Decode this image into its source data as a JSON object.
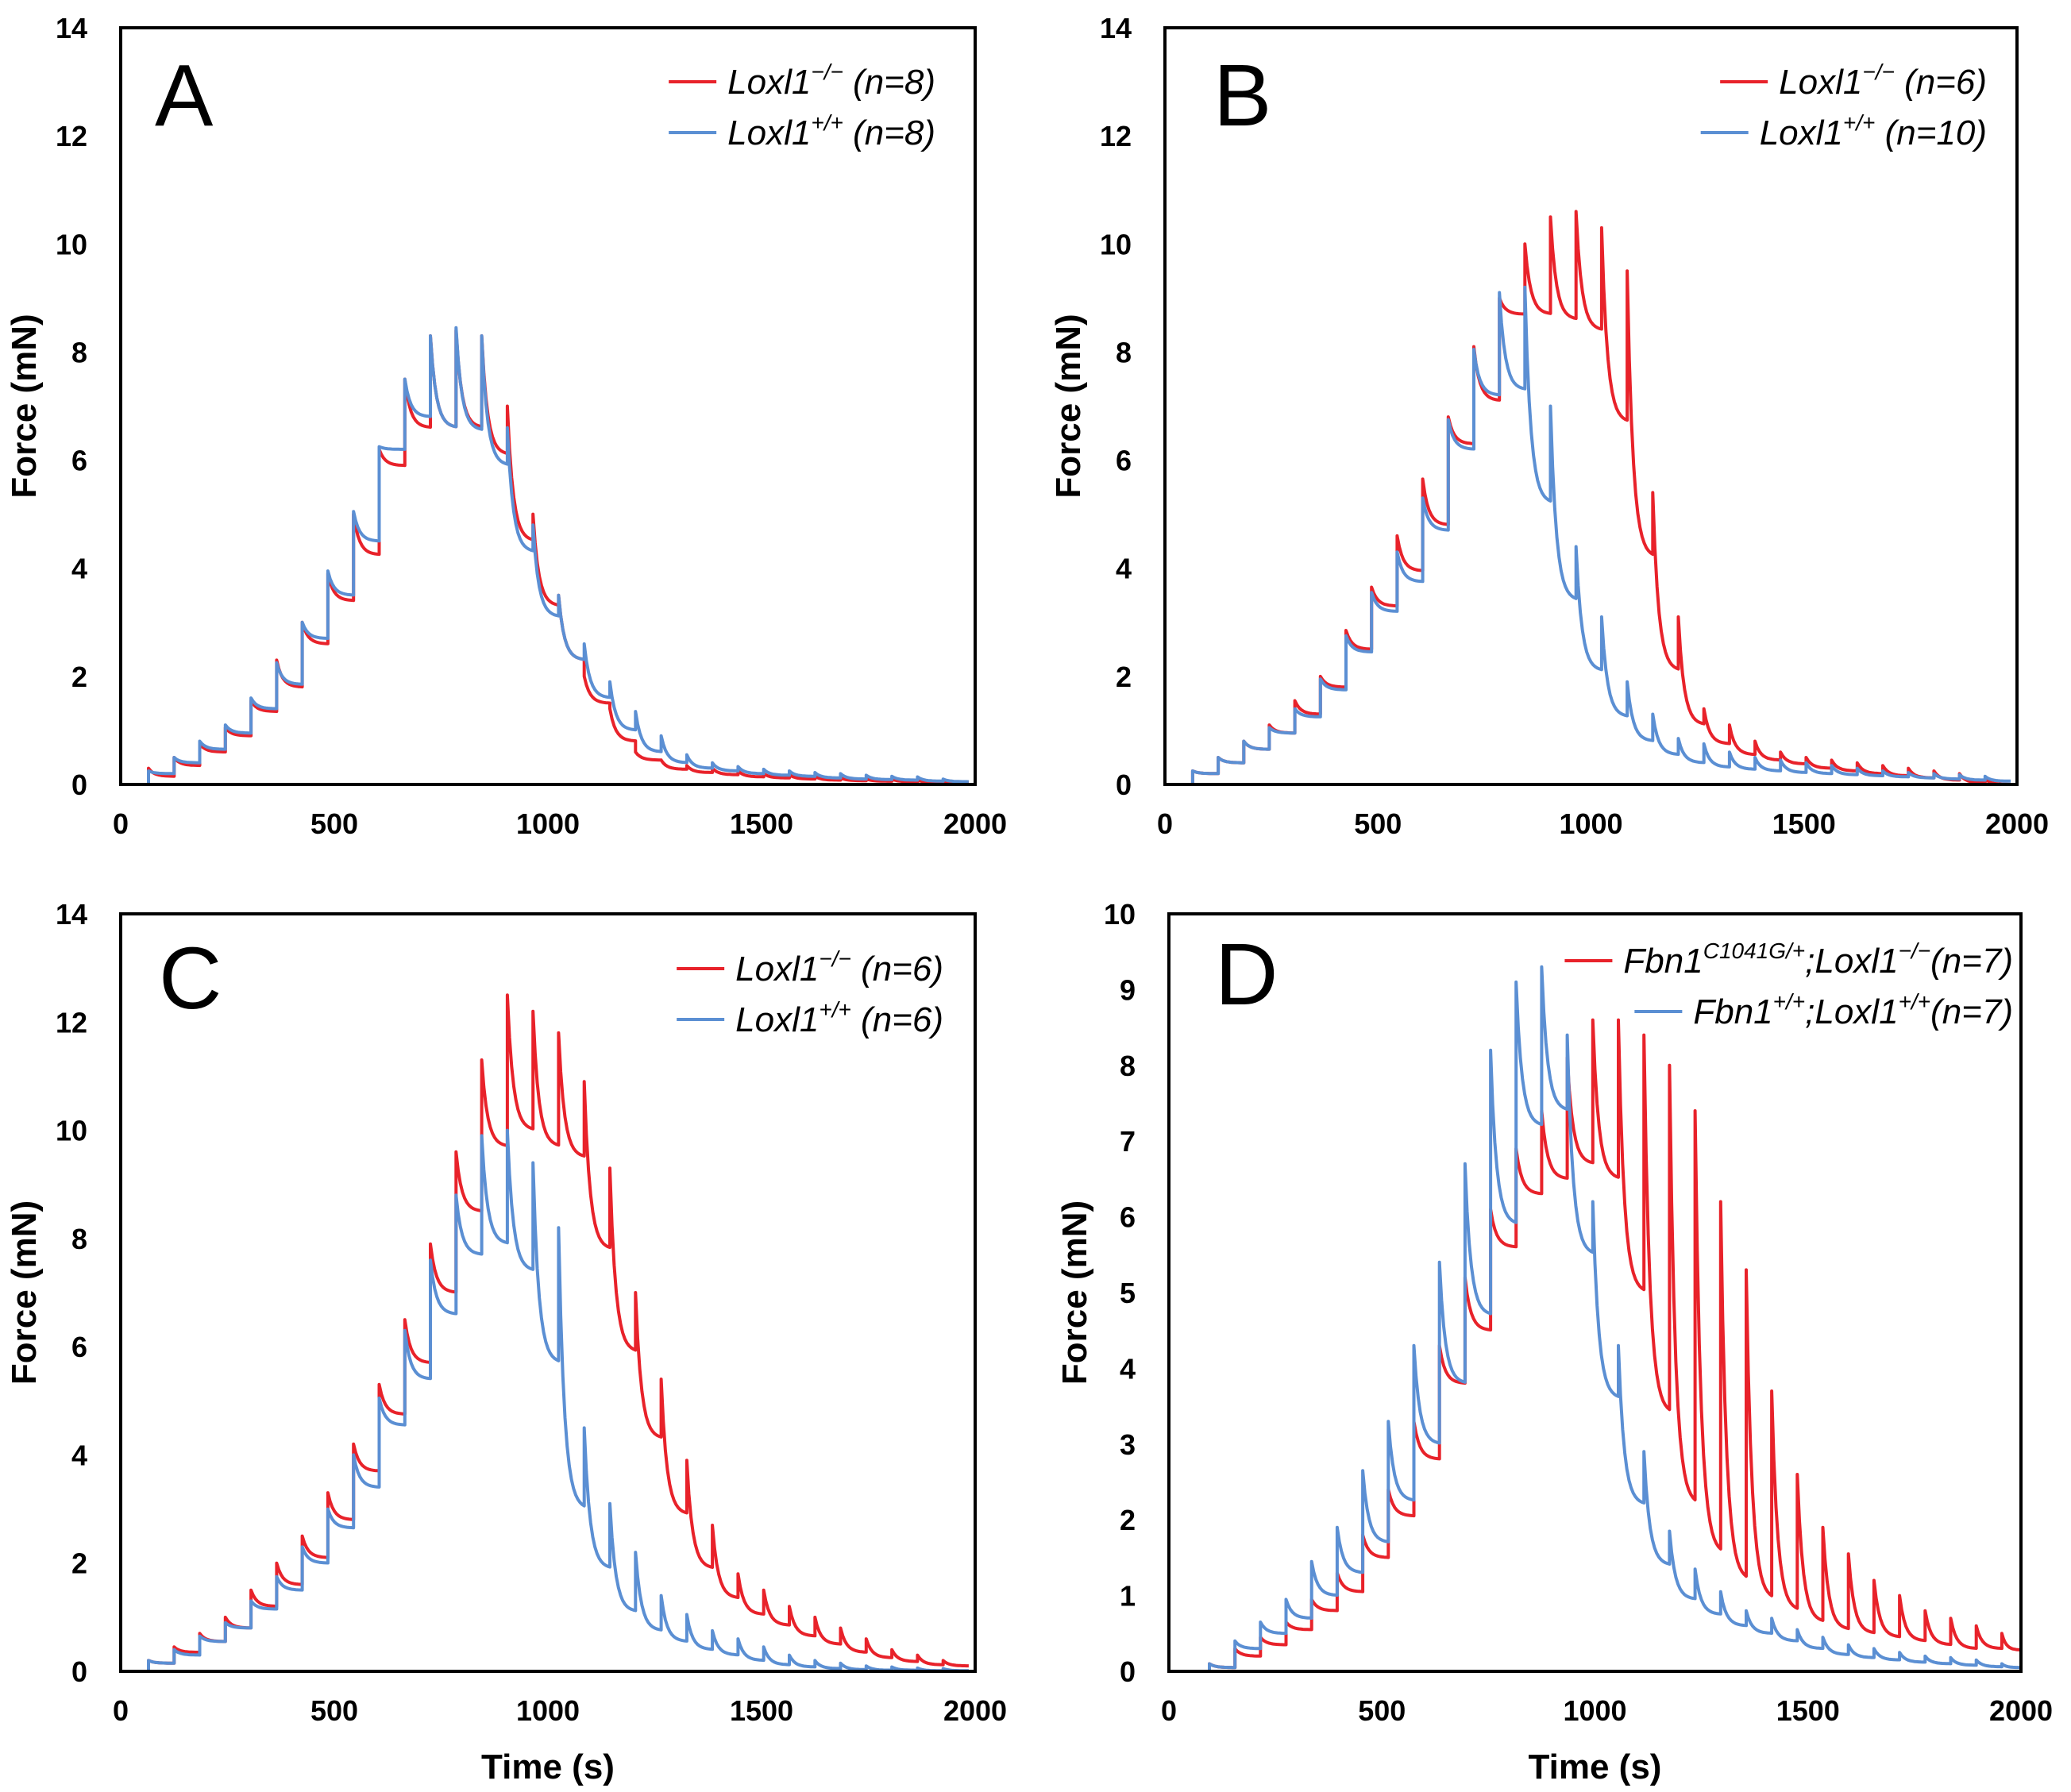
{
  "colors": {
    "red": "#e8222a",
    "blue": "#5b8fd3"
  },
  "chart_data": [
    {
      "id": "A",
      "type": "line",
      "panel_label": "A",
      "xlabel": "",
      "ylabel": "Force (mN)",
      "xlim": [
        0,
        2000
      ],
      "ylim": [
        0,
        14
      ],
      "xticks": [
        0,
        500,
        1000,
        1500,
        2000
      ],
      "yticks": [
        0,
        2,
        4,
        6,
        8,
        10,
        12,
        14
      ],
      "step_start": 65,
      "step_interval": 60,
      "step_offset": 0,
      "series": [
        {
          "name": "Loxl1−/− (n=8)",
          "gene": "Loxl1",
          "sup": "−/−",
          "n_text": " (n=8)",
          "color": "#e8222a",
          "levels": [
            0.15,
            0.35,
            0.6,
            0.9,
            1.35,
            1.8,
            2.6,
            3.4,
            4.25,
            5.9,
            6.6,
            6.6,
            6.6,
            6.1,
            4.5,
            3.3,
            2.3,
            1.5,
            0.8,
            0.45,
            0.28,
            0.22,
            0.18,
            0.14,
            0.12,
            0.1,
            0.08,
            0.07,
            0.06,
            0.05,
            0.04,
            0.03
          ],
          "peaks": [
            0.3,
            0.5,
            0.75,
            1.05,
            1.55,
            2.3,
            3.0,
            3.9,
            5.0,
            6.2,
            7.5,
            8.3,
            8.4,
            8.3,
            7.0,
            5.0,
            3.5,
            2.0,
            1.4,
            0.6,
            0.45,
            0.35,
            0.3,
            0.25,
            0.2,
            0.18,
            0.15,
            0.12,
            0.1,
            0.1,
            0.08,
            0.06
          ]
        },
        {
          "name": "Loxl1+/+ (n=8)",
          "gene": "Loxl1",
          "sup": "+/+",
          "n_text": " (n=8)",
          "color": "#5b8fd3",
          "levels": [
            0.2,
            0.4,
            0.65,
            0.95,
            1.4,
            1.85,
            2.7,
            3.5,
            4.5,
            6.2,
            6.8,
            6.6,
            6.55,
            5.9,
            4.3,
            3.1,
            2.3,
            1.6,
            1.0,
            0.6,
            0.4,
            0.3,
            0.25,
            0.2,
            0.17,
            0.15,
            0.12,
            0.1,
            0.09,
            0.08,
            0.06,
            0.05
          ],
          "peaks": [
            0.25,
            0.5,
            0.8,
            1.1,
            1.6,
            2.25,
            3.0,
            3.95,
            5.05,
            6.25,
            7.5,
            8.3,
            8.45,
            8.3,
            6.6,
            4.8,
            3.5,
            2.6,
            1.9,
            1.35,
            0.9,
            0.55,
            0.4,
            0.33,
            0.28,
            0.25,
            0.22,
            0.2,
            0.17,
            0.15,
            0.14,
            0.1
          ]
        }
      ]
    },
    {
      "id": "B",
      "type": "line",
      "panel_label": "B",
      "xlabel": "",
      "ylabel": "Force (mN)",
      "xlim": [
        0,
        2000
      ],
      "ylim": [
        0,
        14
      ],
      "xticks": [
        0,
        500,
        1000,
        1500,
        2000
      ],
      "yticks": [
        0,
        2,
        4,
        6,
        8,
        10,
        12,
        14
      ],
      "step_start": 65,
      "step_interval": 60,
      "step_offset": 0,
      "series": [
        {
          "name": "Loxl1−/− (n=6)",
          "gene": "Loxl1",
          "sup": "−/−",
          "n_text": " (n=6)",
          "color": "#e8222a",
          "levels": [
            0.2,
            0.4,
            0.65,
            0.95,
            1.3,
            1.8,
            2.5,
            3.3,
            3.95,
            4.8,
            6.3,
            7.1,
            8.7,
            8.7,
            8.6,
            8.4,
            6.7,
            4.2,
            2.1,
            1.1,
            0.75,
            0.55,
            0.45,
            0.38,
            0.3,
            0.25,
            0.2,
            0.16,
            0.12,
            0.08,
            0.03,
            0.0
          ],
          "peaks": [
            0.25,
            0.5,
            0.8,
            1.1,
            1.55,
            2.0,
            2.85,
            3.65,
            4.6,
            5.65,
            6.8,
            8.1,
            9.0,
            10.0,
            10.5,
            10.6,
            10.3,
            9.5,
            5.4,
            3.1,
            1.4,
            1.1,
            0.8,
            0.6,
            0.5,
            0.45,
            0.4,
            0.35,
            0.3,
            0.25,
            0.2,
            0.1
          ]
        },
        {
          "name": "Loxl1+/+ (n=10)",
          "gene": "Loxl1",
          "sup": "+/+",
          "n_text": " (n=10)",
          "color": "#5b8fd3",
          "levels": [
            0.2,
            0.4,
            0.65,
            0.95,
            1.25,
            1.75,
            2.45,
            3.2,
            3.75,
            4.7,
            6.2,
            7.2,
            7.3,
            5.2,
            3.4,
            2.1,
            1.25,
            0.8,
            0.55,
            0.4,
            0.32,
            0.28,
            0.25,
            0.22,
            0.2,
            0.18,
            0.16,
            0.14,
            0.12,
            0.1,
            0.08,
            0.06
          ],
          "peaks": [
            0.25,
            0.5,
            0.8,
            1.05,
            1.4,
            1.95,
            2.75,
            3.55,
            4.3,
            5.3,
            6.75,
            8.05,
            9.1,
            9.2,
            7.0,
            4.4,
            3.1,
            1.9,
            1.3,
            0.85,
            0.75,
            0.6,
            0.5,
            0.45,
            0.4,
            0.35,
            0.3,
            0.25,
            0.22,
            0.2,
            0.18,
            0.15
          ]
        }
      ]
    },
    {
      "id": "C",
      "type": "line",
      "panel_label": "C",
      "xlabel": "Time (s)",
      "ylabel": "Force (mN)",
      "xlim": [
        0,
        2000
      ],
      "ylim": [
        0,
        14
      ],
      "xticks": [
        0,
        500,
        1000,
        1500,
        2000
      ],
      "yticks": [
        0,
        2,
        4,
        6,
        8,
        10,
        12,
        14
      ],
      "step_start": 65,
      "step_interval": 60,
      "step_offset": 0,
      "series": [
        {
          "name": "Loxl1−/− (n=6)",
          "gene": "Loxl1",
          "sup": "−/−",
          "n_text": " (n=6)",
          "color": "#e8222a",
          "levels": [
            0.15,
            0.35,
            0.55,
            0.8,
            1.2,
            1.6,
            2.1,
            2.8,
            3.7,
            4.75,
            5.7,
            7.0,
            8.5,
            9.7,
            10.0,
            9.7,
            9.5,
            7.8,
            5.9,
            4.3,
            2.9,
            1.9,
            1.35,
            1.05,
            0.85,
            0.65,
            0.5,
            0.35,
            0.25,
            0.18,
            0.12,
            0.1
          ],
          "peaks": [
            0.2,
            0.45,
            0.7,
            1.0,
            1.5,
            2.0,
            2.5,
            3.3,
            4.2,
            5.3,
            6.5,
            7.9,
            9.6,
            11.3,
            12.5,
            12.2,
            11.8,
            10.9,
            9.3,
            7.0,
            5.4,
            3.9,
            2.7,
            1.8,
            1.5,
            1.2,
            1.0,
            0.8,
            0.6,
            0.4,
            0.3,
            0.2
          ]
        },
        {
          "name": "Loxl1+/+ (n=6)",
          "gene": "Loxl1",
          "sup": "+/+",
          "n_text": " (n=6)",
          "color": "#5b8fd3",
          "levels": [
            0.15,
            0.3,
            0.55,
            0.8,
            1.15,
            1.5,
            2.0,
            2.65,
            3.4,
            4.55,
            5.4,
            6.6,
            7.7,
            7.9,
            7.4,
            5.7,
            3.0,
            1.9,
            1.1,
            0.75,
            0.55,
            0.4,
            0.3,
            0.2,
            0.12,
            0.08,
            0.05,
            0.03,
            0.02,
            0.02,
            0.01,
            0.01
          ],
          "peaks": [
            0.2,
            0.4,
            0.65,
            0.9,
            1.3,
            1.75,
            2.3,
            3.0,
            4.0,
            5.05,
            6.3,
            7.6,
            8.8,
            9.9,
            10.0,
            9.4,
            8.2,
            4.5,
            3.1,
            2.2,
            1.4,
            1.05,
            0.75,
            0.6,
            0.45,
            0.3,
            0.2,
            0.15,
            0.1,
            0.08,
            0.06,
            0.05
          ]
        }
      ]
    },
    {
      "id": "D",
      "type": "line",
      "panel_label": "D",
      "xlabel": "Time (s)",
      "ylabel": "Force (mN)",
      "xlim": [
        0,
        2000
      ],
      "ylim": [
        0,
        10
      ],
      "xticks": [
        0,
        500,
        1000,
        1500,
        2000
      ],
      "yticks": [
        0,
        1,
        2,
        3,
        4,
        5,
        6,
        7,
        8,
        9,
        10
      ],
      "step_start": 65,
      "step_interval": 60,
      "step_offset": 30,
      "series": [
        {
          "name": "Fbn1C1041G/+;Loxl1−/−(n=7)",
          "gene": "Fbn1",
          "sup": "C1041G/+",
          "gene2": ";Loxl1",
          "sup2": "−/−",
          "n_text": "(n=7)",
          "color": "#e8222a",
          "levels": [
            0.05,
            0.2,
            0.35,
            0.55,
            0.8,
            1.05,
            1.5,
            2.05,
            2.8,
            3.8,
            4.5,
            5.6,
            6.3,
            6.5,
            6.7,
            6.5,
            5.0,
            3.4,
            2.2,
            1.55,
            1.2,
            0.95,
            0.8,
            0.65,
            0.55,
            0.5,
            0.45,
            0.4,
            0.35,
            0.3,
            0.3,
            0.28
          ],
          "peaks": [
            0.1,
            0.3,
            0.45,
            0.65,
            0.95,
            1.3,
            1.8,
            2.4,
            3.3,
            4.3,
            5.2,
            6.1,
            6.9,
            7.4,
            8.1,
            8.6,
            8.6,
            8.4,
            8.0,
            7.4,
            6.2,
            5.3,
            3.7,
            2.6,
            1.9,
            1.55,
            1.2,
            1.0,
            0.8,
            0.7,
            0.6,
            0.5
          ]
        },
        {
          "name": "Fbn1+/+;Loxl1+/+(n=7)",
          "gene": "Fbn1",
          "sup": "+/+",
          "gene2": ";Loxl1",
          "sup2": "+/+",
          "n_text": "(n=7)",
          "color": "#5b8fd3",
          "levels": [
            0.05,
            0.3,
            0.5,
            0.7,
            1.0,
            1.3,
            1.7,
            2.25,
            3.0,
            3.8,
            4.7,
            5.9,
            7.2,
            7.4,
            5.5,
            3.6,
            2.2,
            1.4,
            0.95,
            0.75,
            0.6,
            0.5,
            0.4,
            0.3,
            0.22,
            0.18,
            0.15,
            0.12,
            0.1,
            0.08,
            0.06,
            0.05
          ],
          "peaks": [
            0.1,
            0.4,
            0.65,
            0.95,
            1.45,
            1.9,
            2.65,
            3.3,
            4.3,
            5.4,
            6.7,
            8.2,
            9.1,
            9.3,
            8.4,
            6.2,
            4.3,
            2.9,
            1.85,
            1.35,
            1.05,
            0.8,
            0.7,
            0.55,
            0.45,
            0.35,
            0.3,
            0.25,
            0.2,
            0.18,
            0.15,
            0.1
          ]
        }
      ]
    }
  ]
}
